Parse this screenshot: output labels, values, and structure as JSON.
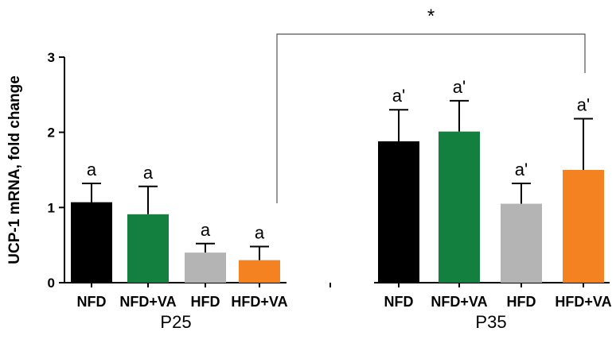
{
  "chart_data": {
    "type": "bar",
    "ylabel": "UCP-1 mRNA, fold change",
    "ylim": [
      0,
      3
    ],
    "yticks": [
      "0",
      "1",
      "2",
      "3"
    ],
    "grid": false,
    "groups": [
      "P25",
      "P35"
    ],
    "categories": [
      "NFD",
      "NFD+VA",
      "HFD",
      "HFD+VA",
      "NFD",
      "NFD+VA",
      "HFD",
      "HFD+VA"
    ],
    "bars": [
      {
        "group": "P25",
        "category": "NFD",
        "value": 1.07,
        "error": 0.25,
        "letter": "a",
        "color": "#000000"
      },
      {
        "group": "P25",
        "category": "NFD+VA",
        "value": 0.91,
        "error": 0.37,
        "letter": "a",
        "color": "#13803f"
      },
      {
        "group": "P25",
        "category": "HFD",
        "value": 0.4,
        "error": 0.12,
        "letter": "a",
        "color": "#b4b4b4"
      },
      {
        "group": "P25",
        "category": "HFD+VA",
        "value": 0.3,
        "error": 0.18,
        "letter": "a",
        "color": "#f58220"
      },
      {
        "group": "P35",
        "category": "NFD",
        "value": 1.88,
        "error": 0.42,
        "letter": "a'",
        "color": "#000000"
      },
      {
        "group": "P35",
        "category": "NFD+VA",
        "value": 2.01,
        "error": 0.41,
        "letter": "a'",
        "color": "#13803f"
      },
      {
        "group": "P35",
        "category": "HFD",
        "value": 1.05,
        "error": 0.27,
        "letter": "a'",
        "color": "#b4b4b4"
      },
      {
        "group": "P35",
        "category": "HFD+VA",
        "value": 1.5,
        "error": 0.68,
        "letter": "a'",
        "color": "#f58220"
      }
    ],
    "annotations": [
      {
        "text": "*",
        "from": "P25 HFD+VA",
        "to": "P35 HFD+VA"
      }
    ]
  }
}
